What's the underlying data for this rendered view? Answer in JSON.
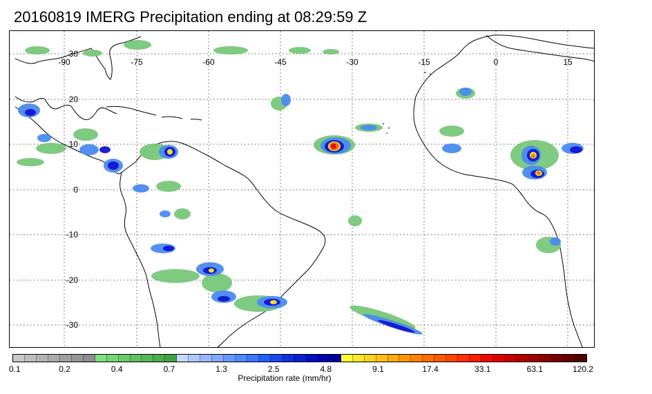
{
  "title": "20160819 IMERG Precipitation ending at 08:29:59 Z",
  "map": {
    "lon_labels": [
      "-90",
      "-75",
      "-60",
      "-45",
      "-30",
      "-15",
      "0",
      "15"
    ],
    "lat_labels": [
      "30",
      "20",
      "10",
      "0",
      "-10",
      "-20",
      "-30"
    ],
    "colors": {
      "coast": "#000000",
      "grid": "#555555",
      "light_rain": "#78c87a",
      "moderate_rain": "#4a8cf0",
      "heavy_rain": "#1414d0",
      "very_heavy_rain": "#f0e01e",
      "intense_rain": "#f07814",
      "extreme_rain": "#e01010"
    }
  },
  "colorbar": {
    "label": "Precipitation rate (mm/hr)",
    "ticks": [
      "0.1",
      "0.2",
      "0.4",
      "0.7",
      "1.3",
      "2.5",
      "4.8",
      "9.1",
      "17.4",
      "33.1",
      "63.1",
      "120.2"
    ],
    "colors": [
      "#c8c8c8",
      "#bebebe",
      "#b4b4b4",
      "#aaaaaa",
      "#a0a0a0",
      "#969696",
      "#8c8c8c",
      "#7ee07e",
      "#74d674",
      "#6acc6a",
      "#60c260",
      "#56b856",
      "#4cae4c",
      "#42a442",
      "#c8d8ff",
      "#b0c8ff",
      "#98b8ff",
      "#80a8ff",
      "#6898ff",
      "#5088ff",
      "#3878ff",
      "#2060ff",
      "#1848f0",
      "#1030e0",
      "#0820d0",
      "#0010c0",
      "#0000b0",
      "#0000a0",
      "#ffff32",
      "#ffe628",
      "#ffd21e",
      "#ffbe14",
      "#ffaa0a",
      "#ff9600",
      "#ff8200",
      "#ff6e00",
      "#ff5a00",
      "#ff4600",
      "#ff3200",
      "#ff1e00",
      "#f00a00",
      "#e00000",
      "#c80000",
      "#b40000",
      "#a00000",
      "#8c0000",
      "#780000",
      "#640000",
      "#500000"
    ]
  }
}
